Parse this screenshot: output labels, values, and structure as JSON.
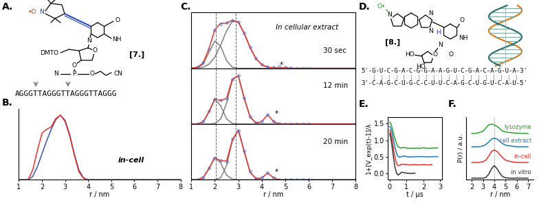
{
  "panel_letters": [
    "A.",
    "B.",
    "C.",
    "D.",
    "E.",
    "F."
  ],
  "structure_7": {
    "label": "[7.]",
    "atoms": [
      "•O",
      "N",
      "O",
      "NH",
      "N",
      "DMTO",
      "O",
      "O",
      "P",
      "N",
      "O",
      "CN"
    ],
    "sequence": "AGGGTTAGGGTTAGGGTTAGGG"
  },
  "structure_8": {
    "label": "[8.]",
    "atoms": [
      "O•",
      "N",
      "N",
      "N",
      "H",
      "O",
      "NH",
      "O",
      "N",
      "O",
      "HO",
      "HO"
    ],
    "duplex": [
      "5'-G-U-C-G-A-C-G-G-A-A-G-U-C-G-A-C-A-G-U-A-3'",
      "3'-C-A-G-C-U-G-C-C-U-U-C-A-G-C-U-G-U-C-A-U-5'"
    ]
  },
  "chart_data": [
    {
      "type": "line",
      "x_label": "r / nm",
      "x": [
        1.0,
        1.4,
        1.6,
        1.8,
        2.0,
        2.2,
        2.4,
        2.6,
        2.8,
        3.0,
        3.2,
        3.4,
        3.6,
        3.8,
        4.0,
        5.0,
        8.0
      ],
      "series": [
        {
          "color": "#3f51b5",
          "line_style": "solid",
          "values": [
            0,
            0,
            0.05,
            0.2,
            0.4,
            0.6,
            0.78,
            0.93,
            1.0,
            0.92,
            0.7,
            0.4,
            0.15,
            0.03,
            0,
            0,
            0
          ]
        },
        {
          "color": "#e8322b",
          "line_style": "solid",
          "values": [
            0,
            0,
            0.15,
            0.45,
            0.72,
            0.78,
            0.82,
            0.95,
            1.0,
            0.9,
            0.68,
            0.38,
            0.12,
            0.02,
            0,
            0,
            0
          ]
        }
      ],
      "xlim": [
        1,
        8
      ],
      "xticks": [
        1,
        2,
        3,
        4,
        5,
        6,
        7,
        8
      ],
      "ylim": [
        0,
        1.1
      ],
      "tick_labels": "x",
      "annotations": [
        {
          "text": "in-cell",
          "x": 5.3,
          "y": 0.3
        }
      ]
    },
    {
      "type": "line",
      "x": [
        1.0,
        1.25,
        1.5,
        1.75,
        2.0,
        2.25,
        2.5,
        2.75,
        3.0,
        3.25,
        3.5,
        3.75,
        4.0,
        4.25,
        4.5,
        4.75,
        5.0,
        5.25,
        5.5,
        5.75,
        6.0,
        8.0
      ],
      "series": [
        {
          "color": "#7f7f7f",
          "line_style": "solid",
          "values": [
            0,
            0.01,
            0.08,
            0.31,
            0.54,
            0.43,
            0.15,
            0.02,
            0,
            0,
            0,
            0,
            0,
            0,
            0,
            0,
            0,
            0,
            0,
            0,
            0,
            0
          ]
        },
        {
          "color": "#7f7f7f",
          "line_style": "solid",
          "values": [
            0,
            0.01,
            0.02,
            0.08,
            0.22,
            0.46,
            0.74,
            0.93,
            0.91,
            0.69,
            0.41,
            0.19,
            0.07,
            0.02,
            0,
            0,
            0,
            0,
            0,
            0,
            0,
            0
          ]
        },
        {
          "color": "#e8322b",
          "line_style": "solid",
          "values": [
            0,
            0.02,
            0.1,
            0.39,
            0.76,
            0.89,
            0.89,
            0.95,
            0.91,
            0.69,
            0.41,
            0.19,
            0.07,
            0.02,
            0.01,
            0.01,
            0.01,
            0,
            0,
            0,
            0,
            0
          ]
        },
        {
          "color": "#5b6fc4",
          "line_style": "none",
          "marker": "circle",
          "values": [
            0,
            0.02,
            0.11,
            0.38,
            0.75,
            0.88,
            0.9,
            0.94,
            0.91,
            0.7,
            0.42,
            0.2,
            0.08,
            0.03,
            0.02,
            0.03,
            0.02,
            0.01,
            0,
            0,
            0,
            0
          ]
        }
      ],
      "xlim": [
        1,
        8
      ],
      "xticks": [
        1,
        2,
        3,
        4,
        5,
        6,
        7,
        8
      ],
      "ylim": [
        0,
        1.1
      ],
      "tick_labels": false,
      "vlines": [
        2.05,
        2.9
      ],
      "annotations": [
        {
          "text": "In cellular extract",
          "x": 4.6,
          "y": 0.8
        },
        {
          "text": "30 sec",
          "x": 6.6,
          "y": 0.35
        },
        {
          "text": "*",
          "x": 4.75,
          "y": 0.06
        }
      ]
    },
    {
      "type": "line",
      "x": [
        1.0,
        1.25,
        1.5,
        1.75,
        2.0,
        2.25,
        2.5,
        2.75,
        3.0,
        3.25,
        3.5,
        3.75,
        4.0,
        4.25,
        4.5,
        4.75,
        5.0,
        5.25,
        5.5,
        5.75,
        6.0,
        8.0
      ],
      "series": [
        {
          "color": "#7f7f7f",
          "line_style": "solid",
          "values": [
            0,
            0,
            0.04,
            0.24,
            0.49,
            0.36,
            0.1,
            0.01,
            0,
            0,
            0,
            0,
            0,
            0,
            0,
            0,
            0,
            0,
            0,
            0,
            0,
            0
          ]
        },
        {
          "color": "#7f7f7f",
          "line_style": "solid",
          "values": [
            0,
            0,
            0,
            0,
            0.01,
            0.1,
            0.41,
            0.88,
            0.95,
            0.51,
            0.14,
            0.02,
            0,
            0,
            0,
            0,
            0,
            0,
            0,
            0,
            0,
            0
          ]
        },
        {
          "color": "#e8322b",
          "line_style": "solid",
          "values": [
            0,
            0,
            0.04,
            0.24,
            0.5,
            0.46,
            0.51,
            0.89,
            0.95,
            0.51,
            0.14,
            0.02,
            0.05,
            0.18,
            0.05,
            0,
            0,
            0,
            0,
            0,
            0,
            0
          ]
        },
        {
          "color": "#5b6fc4",
          "line_style": "none",
          "marker": "circle",
          "values": [
            0,
            0,
            0.05,
            0.25,
            0.49,
            0.47,
            0.5,
            0.88,
            0.96,
            0.52,
            0.15,
            0.03,
            0.06,
            0.19,
            0.06,
            0.01,
            0,
            0,
            0,
            0,
            0,
            0
          ]
        }
      ],
      "xlim": [
        1,
        8
      ],
      "xticks": [
        1,
        2,
        3,
        4,
        5,
        6,
        7,
        8
      ],
      "ylim": [
        0,
        1.1
      ],
      "tick_labels": false,
      "vlines": [
        2.05,
        2.9
      ],
      "annotations": [
        {
          "text": "12 min",
          "x": 6.6,
          "y": 0.75
        },
        {
          "text": "*",
          "x": 4.55,
          "y": 0.2
        }
      ]
    },
    {
      "type": "line",
      "x_label": "r / nm",
      "x": [
        1.0,
        1.25,
        1.5,
        1.75,
        2.0,
        2.25,
        2.5,
        2.75,
        3.0,
        3.25,
        3.5,
        3.75,
        4.0,
        4.25,
        4.5,
        4.75,
        5.0,
        5.25,
        5.5,
        5.75,
        6.0,
        8.0
      ],
      "series": [
        {
          "color": "#7f7f7f",
          "line_style": "solid",
          "values": [
            0,
            0,
            0.04,
            0.22,
            0.44,
            0.33,
            0.09,
            0.01,
            0,
            0,
            0,
            0,
            0,
            0,
            0,
            0,
            0,
            0,
            0,
            0,
            0,
            0
          ]
        },
        {
          "color": "#7f7f7f",
          "line_style": "solid",
          "values": [
            0,
            0,
            0,
            0,
            0,
            0.04,
            0.28,
            0.78,
            0.98,
            0.56,
            0.15,
            0.02,
            0,
            0,
            0,
            0,
            0,
            0,
            0,
            0,
            0,
            0
          ]
        },
        {
          "color": "#e8322b",
          "line_style": "solid",
          "values": [
            0,
            0,
            0.04,
            0.22,
            0.44,
            0.37,
            0.37,
            0.79,
            0.98,
            0.56,
            0.15,
            0.02,
            0.04,
            0.13,
            0.04,
            0,
            0,
            0,
            0,
            0,
            0,
            0
          ]
        },
        {
          "color": "#5b6fc4",
          "line_style": "none",
          "marker": "circle",
          "values": [
            0,
            0,
            0.05,
            0.23,
            0.43,
            0.38,
            0.36,
            0.8,
            0.97,
            0.57,
            0.16,
            0.03,
            0.05,
            0.14,
            0.04,
            0,
            0,
            0,
            0,
            0,
            0,
            0
          ]
        }
      ],
      "xlim": [
        1,
        8
      ],
      "xticks": [
        1,
        2,
        3,
        4,
        5,
        6,
        7,
        8
      ],
      "ylim": [
        0,
        1.1
      ],
      "tick_labels": "x",
      "vlines": [
        2.05,
        2.9
      ],
      "annotations": [
        {
          "text": "20 min",
          "x": 6.6,
          "y": 0.75
        },
        {
          "text": "*",
          "x": 4.55,
          "y": 0.15
        }
      ]
    },
    {
      "type": "line",
      "x_label": "t / µs",
      "y_label": "1+[V_exp(t)-1]/λ",
      "x": [
        0,
        0.1,
        0.2,
        0.3,
        0.4,
        0.5,
        0.6,
        0.7,
        0.8,
        1.0,
        1.25,
        1.5,
        1.75,
        2.0,
        2.25,
        2.5,
        2.75,
        2.85
      ],
      "series": [
        {
          "color": "#2ca02c",
          "line_style": "solid",
          "values": [
            1.55,
            1.45,
            1.25,
            1.05,
            0.9,
            0.8,
            0.77,
            0.76,
            0.78,
            0.76,
            0.75,
            0.76,
            0.75,
            0.77,
            0.75,
            0.76,
            0.76,
            0.77
          ]
        },
        {
          "color": "#1f77b4",
          "line_style": "solid",
          "values": [
            1.42,
            1.3,
            1.05,
            0.8,
            0.6,
            0.5,
            0.48,
            0.5,
            0.52,
            0.5,
            0.49,
            0.5,
            0.5,
            0.5,
            0.49,
            0.5,
            0.5,
            0.5
          ]
        },
        {
          "color": "#e8322b",
          "line_style": "solid",
          "values": [
            1.3,
            1.1,
            0.8,
            0.5,
            0.3,
            0.22,
            0.24,
            0.27,
            0.27,
            0.26,
            0.25,
            0.26,
            0.25,
            0.26,
            0.25,
            0.26,
            null,
            null
          ]
        },
        {
          "color": "#333333",
          "line_style": "solid",
          "values": [
            1.2,
            0.95,
            0.55,
            0.2,
            0.0,
            -0.06,
            -0.02,
            0.03,
            0.02,
            0.0,
            -0.01,
            0.0,
            null,
            null,
            null,
            null,
            null,
            null
          ]
        }
      ],
      "xlim": [
        -0.1,
        3.1
      ],
      "xticks": [
        0,
        1,
        2,
        3
      ],
      "ylim": [
        -0.2,
        1.7
      ],
      "yticks": [
        0.0,
        0.5,
        1.0,
        1.5
      ]
    },
    {
      "type": "line",
      "x_label": "r / nm",
      "y_label": "P(r) / a.u.",
      "x": [
        2.0,
        2.5,
        3.0,
        3.25,
        3.5,
        3.75,
        4.0,
        4.25,
        4.5,
        4.75,
        5.0,
        5.5,
        6.0,
        6.5,
        7.0
      ],
      "series": [
        {
          "name": "lysozyme",
          "color": "#2ca02c",
          "line_style": "solid",
          "values": [
            2.85,
            2.87,
            3.0,
            3.2,
            3.4,
            3.45,
            3.4,
            3.3,
            3.15,
            3.0,
            2.95,
            2.9,
            2.87,
            2.86,
            2.85
          ]
        },
        {
          "name": "cell extract",
          "color": "#1f77b4",
          "line_style": "solid",
          "values": [
            2.0,
            2.0,
            2.05,
            2.15,
            2.3,
            2.5,
            2.55,
            2.5,
            2.35,
            2.2,
            2.1,
            2.05,
            2.0,
            2.0,
            2.0
          ]
        },
        {
          "name": "in-cell",
          "color": "#e8322b",
          "line_style": "solid",
          "values": [
            1.0,
            1.0,
            1.05,
            1.15,
            1.4,
            1.7,
            1.8,
            1.7,
            1.5,
            1.3,
            1.15,
            1.05,
            1.0,
            1.0,
            1.0
          ]
        },
        {
          "name": "in vitro",
          "color": "#333333",
          "line_style": "solid",
          "values": [
            0,
            0,
            0,
            0.05,
            0.25,
            0.6,
            0.8,
            0.6,
            0.3,
            0.1,
            0.02,
            0,
            0,
            0,
            0
          ]
        }
      ],
      "xlim": [
        1.5,
        7.5
      ],
      "xticks": [
        2,
        3,
        4,
        5,
        6,
        7
      ],
      "ylim": [
        -0.1,
        3.9
      ],
      "tick_labels": "x",
      "vlines": [
        4.0
      ]
    }
  ]
}
